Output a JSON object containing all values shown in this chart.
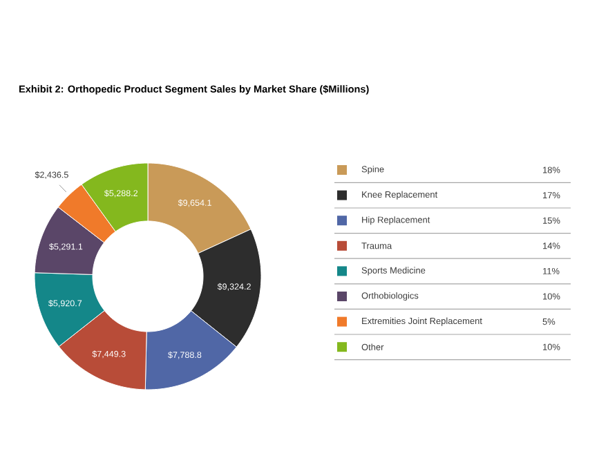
{
  "chart_data": {
    "type": "donut",
    "title": "Exhibit 2: Orthopedic Product Segment Sales by Market Share ($Millions)",
    "categories": [
      "Spine",
      "Knee Replacement",
      "Hip Replacement",
      "Trauma",
      "Sports Medicine",
      "Orthobiologics",
      "Extremities Joint Replacement",
      "Other"
    ],
    "values": [
      9654.1,
      9324.2,
      7788.8,
      7449.3,
      5920.7,
      5291.1,
      2436.5,
      5288.2
    ],
    "value_labels": [
      "$9,654.1",
      "$9,324.2",
      "$7,788.8",
      "$7,449.3",
      "$5,920.7",
      "$5,291.1",
      "$2,436.5",
      "$5,288.2"
    ],
    "colors": [
      "#c99a58",
      "#2d2d2d",
      "#5067a6",
      "#b84c38",
      "#148789",
      "#5a4668",
      "#f07a2a",
      "#84b81e"
    ],
    "legend": "right",
    "annotations": [
      "18%",
      "17%",
      "15%",
      "14%",
      "11%",
      "10%",
      "5%",
      "10%"
    ]
  }
}
